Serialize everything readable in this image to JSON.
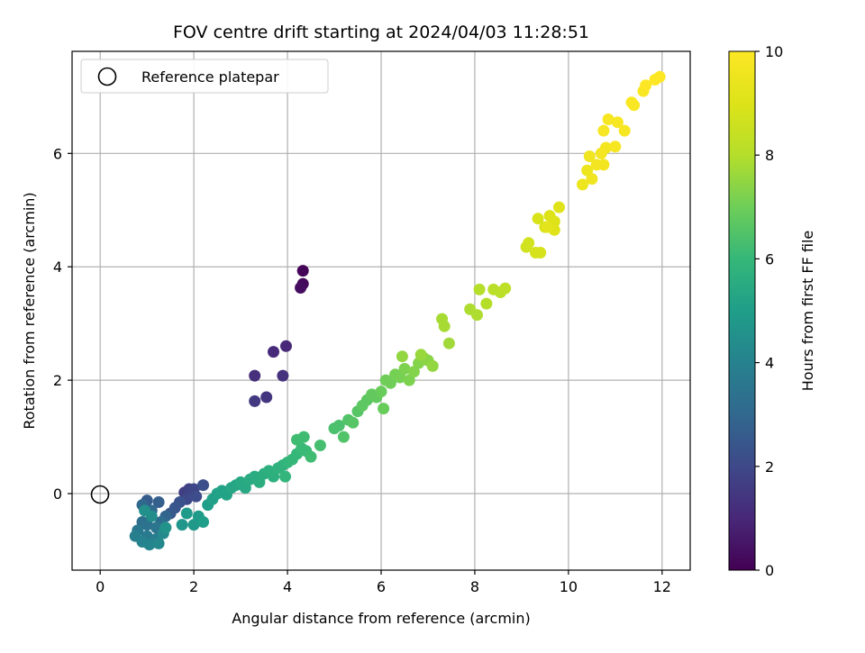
{
  "chart_data": {
    "type": "scatter",
    "title": "FOV centre drift starting at 2024/04/03 11:28:51",
    "xlabel": "Angular distance from reference (arcmin)",
    "ylabel": "Rotation from reference (arcmin)",
    "xlim": [
      -0.6,
      12.6
    ],
    "ylim": [
      -1.35,
      7.8
    ],
    "xticks": [
      0,
      2,
      4,
      6,
      8,
      10,
      12
    ],
    "yticks": [
      0,
      2,
      4,
      6
    ],
    "grid": true,
    "legend": {
      "placement": "top-left",
      "entries": [
        "Reference platepar"
      ]
    },
    "reference_point": {
      "x": 0,
      "y": 0,
      "marker": "open-circle"
    },
    "colorbar": {
      "label": "Hours from first FF file",
      "range": [
        0,
        10
      ],
      "ticks": [
        0,
        2,
        4,
        6,
        8,
        10
      ],
      "colormap": "viridis"
    },
    "points": [
      {
        "x": 4.33,
        "y": 3.93,
        "h": 0.1
      },
      {
        "x": 4.33,
        "y": 3.7,
        "h": 0.2
      },
      {
        "x": 4.28,
        "y": 3.63,
        "h": 0.3
      },
      {
        "x": 3.97,
        "y": 2.6,
        "h": 1.0
      },
      {
        "x": 3.7,
        "y": 2.5,
        "h": 1.1
      },
      {
        "x": 3.3,
        "y": 2.08,
        "h": 1.2
      },
      {
        "x": 3.9,
        "y": 2.08,
        "h": 1.3
      },
      {
        "x": 3.55,
        "y": 1.7,
        "h": 1.4
      },
      {
        "x": 3.3,
        "y": 1.63,
        "h": 1.5
      },
      {
        "x": 1.8,
        "y": 0.02,
        "h": 1.7
      },
      {
        "x": 1.9,
        "y": 0.08,
        "h": 1.8
      },
      {
        "x": 2.0,
        "y": 0.08,
        "h": 1.9
      },
      {
        "x": 1.85,
        "y": -0.1,
        "h": 2.0
      },
      {
        "x": 2.05,
        "y": -0.05,
        "h": 2.1
      },
      {
        "x": 2.2,
        "y": 0.15,
        "h": 2.2
      },
      {
        "x": 1.7,
        "y": -0.15,
        "h": 2.3
      },
      {
        "x": 1.6,
        "y": -0.25,
        "h": 2.4
      },
      {
        "x": 1.5,
        "y": -0.35,
        "h": 2.5
      },
      {
        "x": 1.0,
        "y": -0.12,
        "h": 2.6
      },
      {
        "x": 1.25,
        "y": -0.15,
        "h": 2.7
      },
      {
        "x": 1.4,
        "y": -0.4,
        "h": 2.9
      },
      {
        "x": 0.9,
        "y": -0.2,
        "h": 3.0
      },
      {
        "x": 1.1,
        "y": -0.3,
        "h": 3.1
      },
      {
        "x": 1.3,
        "y": -0.5,
        "h": 3.2
      },
      {
        "x": 0.9,
        "y": -0.5,
        "h": 3.3
      },
      {
        "x": 1.0,
        "y": -0.55,
        "h": 3.4
      },
      {
        "x": 1.2,
        "y": -0.6,
        "h": 3.5
      },
      {
        "x": 0.8,
        "y": -0.65,
        "h": 3.6
      },
      {
        "x": 1.0,
        "y": -0.75,
        "h": 3.7
      },
      {
        "x": 1.2,
        "y": -0.8,
        "h": 3.8
      },
      {
        "x": 0.75,
        "y": -0.75,
        "h": 3.9
      },
      {
        "x": 0.9,
        "y": -0.85,
        "h": 4.0
      },
      {
        "x": 1.05,
        "y": -0.9,
        "h": 4.1
      },
      {
        "x": 1.25,
        "y": -0.88,
        "h": 4.2
      },
      {
        "x": 1.35,
        "y": -0.7,
        "h": 4.3
      },
      {
        "x": 1.1,
        "y": -0.4,
        "h": 4.4
      },
      {
        "x": 0.95,
        "y": -0.3,
        "h": 4.5
      },
      {
        "x": 1.4,
        "y": -0.6,
        "h": 4.6
      },
      {
        "x": 1.75,
        "y": -0.55,
        "h": 4.7
      },
      {
        "x": 2.0,
        "y": -0.55,
        "h": 4.8
      },
      {
        "x": 1.85,
        "y": -0.35,
        "h": 4.9
      },
      {
        "x": 2.1,
        "y": -0.4,
        "h": 4.9
      },
      {
        "x": 2.2,
        "y": -0.5,
        "h": 5.0
      },
      {
        "x": 2.3,
        "y": -0.2,
        "h": 5.0
      },
      {
        "x": 2.4,
        "y": -0.1,
        "h": 5.1
      },
      {
        "x": 2.5,
        "y": 0.0,
        "h": 5.1
      },
      {
        "x": 2.6,
        "y": 0.05,
        "h": 5.2
      },
      {
        "x": 2.7,
        "y": -0.02,
        "h": 5.2
      },
      {
        "x": 2.8,
        "y": 0.1,
        "h": 5.3
      },
      {
        "x": 2.9,
        "y": 0.15,
        "h": 5.3
      },
      {
        "x": 3.0,
        "y": 0.2,
        "h": 5.4
      },
      {
        "x": 3.1,
        "y": 0.1,
        "h": 5.4
      },
      {
        "x": 3.2,
        "y": 0.25,
        "h": 5.5
      },
      {
        "x": 3.3,
        "y": 0.3,
        "h": 5.5
      },
      {
        "x": 3.4,
        "y": 0.2,
        "h": 5.6
      },
      {
        "x": 3.5,
        "y": 0.35,
        "h": 5.6
      },
      {
        "x": 3.6,
        "y": 0.4,
        "h": 5.7
      },
      {
        "x": 3.7,
        "y": 0.3,
        "h": 5.7
      },
      {
        "x": 3.8,
        "y": 0.45,
        "h": 5.8
      },
      {
        "x": 3.9,
        "y": 0.5,
        "h": 5.8
      },
      {
        "x": 4.0,
        "y": 0.55,
        "h": 5.9
      },
      {
        "x": 3.95,
        "y": 0.3,
        "h": 5.9
      },
      {
        "x": 4.1,
        "y": 0.6,
        "h": 6.0
      },
      {
        "x": 4.2,
        "y": 0.7,
        "h": 6.0
      },
      {
        "x": 4.3,
        "y": 0.8,
        "h": 6.1
      },
      {
        "x": 4.4,
        "y": 0.75,
        "h": 6.1
      },
      {
        "x": 4.5,
        "y": 0.65,
        "h": 6.2
      },
      {
        "x": 4.2,
        "y": 0.95,
        "h": 6.2
      },
      {
        "x": 4.35,
        "y": 1.0,
        "h": 6.2
      },
      {
        "x": 4.7,
        "y": 0.85,
        "h": 6.3
      },
      {
        "x": 5.0,
        "y": 1.15,
        "h": 6.4
      },
      {
        "x": 5.1,
        "y": 1.2,
        "h": 6.4
      },
      {
        "x": 5.2,
        "y": 1.0,
        "h": 6.5
      },
      {
        "x": 5.3,
        "y": 1.3,
        "h": 6.5
      },
      {
        "x": 5.4,
        "y": 1.25,
        "h": 6.6
      },
      {
        "x": 5.5,
        "y": 1.45,
        "h": 6.6
      },
      {
        "x": 5.6,
        "y": 1.55,
        "h": 6.7
      },
      {
        "x": 5.7,
        "y": 1.65,
        "h": 6.7
      },
      {
        "x": 5.8,
        "y": 1.75,
        "h": 6.8
      },
      {
        "x": 5.9,
        "y": 1.7,
        "h": 6.8
      },
      {
        "x": 6.0,
        "y": 1.8,
        "h": 6.9
      },
      {
        "x": 6.05,
        "y": 1.5,
        "h": 6.9
      },
      {
        "x": 6.1,
        "y": 2.0,
        "h": 7.0
      },
      {
        "x": 6.2,
        "y": 1.95,
        "h": 7.0
      },
      {
        "x": 6.3,
        "y": 2.1,
        "h": 7.1
      },
      {
        "x": 6.4,
        "y": 2.05,
        "h": 7.1
      },
      {
        "x": 6.5,
        "y": 2.2,
        "h": 7.2
      },
      {
        "x": 6.6,
        "y": 2.0,
        "h": 7.2
      },
      {
        "x": 6.7,
        "y": 2.15,
        "h": 7.3
      },
      {
        "x": 6.8,
        "y": 2.3,
        "h": 7.3
      },
      {
        "x": 6.9,
        "y": 2.4,
        "h": 7.4
      },
      {
        "x": 7.0,
        "y": 2.35,
        "h": 7.4
      },
      {
        "x": 7.1,
        "y": 2.25,
        "h": 7.5
      },
      {
        "x": 6.45,
        "y": 2.42,
        "h": 7.5
      },
      {
        "x": 6.85,
        "y": 2.45,
        "h": 7.6
      },
      {
        "x": 7.45,
        "y": 2.65,
        "h": 7.7
      },
      {
        "x": 7.35,
        "y": 2.95,
        "h": 7.8
      },
      {
        "x": 7.3,
        "y": 3.08,
        "h": 7.8
      },
      {
        "x": 7.9,
        "y": 3.25,
        "h": 7.9
      },
      {
        "x": 8.05,
        "y": 3.15,
        "h": 7.9
      },
      {
        "x": 8.1,
        "y": 3.6,
        "h": 8.0
      },
      {
        "x": 8.25,
        "y": 3.35,
        "h": 8.0
      },
      {
        "x": 8.4,
        "y": 3.6,
        "h": 8.1
      },
      {
        "x": 8.55,
        "y": 3.55,
        "h": 8.1
      },
      {
        "x": 8.65,
        "y": 3.62,
        "h": 8.2
      },
      {
        "x": 9.1,
        "y": 4.35,
        "h": 8.7
      },
      {
        "x": 9.15,
        "y": 4.42,
        "h": 8.7
      },
      {
        "x": 9.3,
        "y": 4.25,
        "h": 8.8
      },
      {
        "x": 9.4,
        "y": 4.25,
        "h": 8.8
      },
      {
        "x": 9.35,
        "y": 4.85,
        "h": 8.9
      },
      {
        "x": 9.5,
        "y": 4.7,
        "h": 8.9
      },
      {
        "x": 9.6,
        "y": 4.9,
        "h": 9.0
      },
      {
        "x": 9.7,
        "y": 4.8,
        "h": 9.0
      },
      {
        "x": 9.8,
        "y": 5.05,
        "h": 9.1
      },
      {
        "x": 9.7,
        "y": 4.65,
        "h": 9.1
      },
      {
        "x": 9.55,
        "y": 4.7,
        "h": 9.2
      },
      {
        "x": 10.3,
        "y": 5.45,
        "h": 9.5
      },
      {
        "x": 10.4,
        "y": 5.7,
        "h": 9.5
      },
      {
        "x": 10.5,
        "y": 5.55,
        "h": 9.6
      },
      {
        "x": 10.45,
        "y": 5.95,
        "h": 9.6
      },
      {
        "x": 10.6,
        "y": 5.8,
        "h": 9.7
      },
      {
        "x": 10.7,
        "y": 6.0,
        "h": 9.7
      },
      {
        "x": 10.75,
        "y": 5.8,
        "h": 9.7
      },
      {
        "x": 10.8,
        "y": 6.1,
        "h": 9.7
      },
      {
        "x": 10.75,
        "y": 6.4,
        "h": 9.8
      },
      {
        "x": 10.85,
        "y": 6.6,
        "h": 9.8
      },
      {
        "x": 11.05,
        "y": 6.55,
        "h": 9.8
      },
      {
        "x": 11.0,
        "y": 6.12,
        "h": 9.8
      },
      {
        "x": 11.2,
        "y": 6.4,
        "h": 9.8
      },
      {
        "x": 11.35,
        "y": 6.9,
        "h": 9.9
      },
      {
        "x": 11.4,
        "y": 6.85,
        "h": 9.9
      },
      {
        "x": 11.6,
        "y": 7.1,
        "h": 9.9
      },
      {
        "x": 11.65,
        "y": 7.2,
        "h": 10.0
      },
      {
        "x": 11.85,
        "y": 7.3,
        "h": 10.0
      },
      {
        "x": 11.95,
        "y": 7.35,
        "h": 10.0
      }
    ]
  }
}
